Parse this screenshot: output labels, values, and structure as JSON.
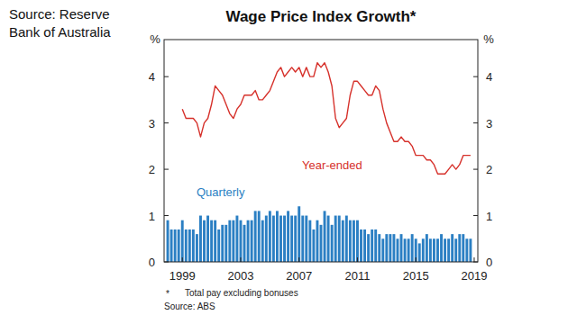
{
  "chart_data": {
    "type": "bar",
    "title": "Wage Price Index Growth*",
    "source_note": "Source: Reserve Bank of Australia",
    "footnote": {
      "marker": "*",
      "text": "Total pay excluding bonuses"
    },
    "source": "Source: ABS",
    "y_label": "%",
    "y2_label": "%",
    "x": [
      1998,
      1998.25,
      1998.5,
      1998.75,
      1999,
      1999.25,
      1999.5,
      1999.75,
      2000,
      2000.25,
      2000.5,
      2000.75,
      2001,
      2001.25,
      2001.5,
      2001.75,
      2002,
      2002.25,
      2002.5,
      2002.75,
      2003,
      2003.25,
      2003.5,
      2003.75,
      2004,
      2004.25,
      2004.5,
      2004.75,
      2005,
      2005.25,
      2005.5,
      2005.75,
      2006,
      2006.25,
      2006.5,
      2006.75,
      2007,
      2007.25,
      2007.5,
      2007.75,
      2008,
      2008.25,
      2008.5,
      2008.75,
      2009,
      2009.25,
      2009.5,
      2009.75,
      2010,
      2010.25,
      2010.5,
      2010.75,
      2011,
      2011.25,
      2011.5,
      2011.75,
      2012,
      2012.25,
      2012.5,
      2012.75,
      2013,
      2013.25,
      2013.5,
      2013.75,
      2014,
      2014.25,
      2014.5,
      2014.75,
      2015,
      2015.25,
      2015.5,
      2015.75,
      2016,
      2016.25,
      2016.5,
      2016.75,
      2017,
      2017.25,
      2017.5,
      2017.75,
      2018,
      2018.25,
      2018.5,
      2018.75
    ],
    "series": [
      {
        "name": "Year-ended",
        "type": "line",
        "color": "#d6312b",
        "values": [
          null,
          null,
          null,
          null,
          3.3,
          3.1,
          3.1,
          3.1,
          3.0,
          2.7,
          3.0,
          3.1,
          3.4,
          3.8,
          3.7,
          3.6,
          3.4,
          3.2,
          3.1,
          3.3,
          3.4,
          3.6,
          3.6,
          3.6,
          3.7,
          3.5,
          3.5,
          3.6,
          3.7,
          3.9,
          4.1,
          4.2,
          4.0,
          4.1,
          4.2,
          4.1,
          4.2,
          4.0,
          4.2,
          4.0,
          4.0,
          4.3,
          4.2,
          4.3,
          4.1,
          3.8,
          3.1,
          2.9,
          3.0,
          3.1,
          3.6,
          3.9,
          3.9,
          3.8,
          3.7,
          3.6,
          3.6,
          3.8,
          3.7,
          3.3,
          3.0,
          2.8,
          2.6,
          2.6,
          2.7,
          2.6,
          2.6,
          2.5,
          2.3,
          2.3,
          2.3,
          2.2,
          2.2,
          2.1,
          1.9,
          1.9,
          1.9,
          2.0,
          2.1,
          2.0,
          2.1,
          2.3,
          2.3,
          2.3
        ]
      },
      {
        "name": "Quarterly",
        "type": "bar",
        "color": "#2b7fc3",
        "values": [
          0.9,
          0.7,
          0.7,
          0.7,
          0.9,
          0.7,
          0.7,
          0.7,
          0.6,
          1.0,
          0.9,
          1.0,
          0.9,
          0.9,
          0.7,
          0.8,
          0.8,
          0.9,
          0.9,
          1.0,
          0.9,
          0.8,
          0.9,
          0.9,
          1.1,
          1.1,
          0.9,
          1.0,
          1.1,
          1.0,
          1.1,
          1.0,
          1.0,
          1.1,
          1.0,
          1.0,
          1.2,
          1.0,
          1.0,
          0.9,
          0.7,
          0.9,
          0.8,
          1.1,
          1.0,
          0.8,
          1.0,
          1.0,
          0.9,
          1.0,
          0.9,
          0.9,
          0.9,
          0.7,
          0.7,
          0.6,
          0.7,
          0.7,
          0.6,
          0.5,
          0.6,
          0.6,
          0.6,
          0.5,
          0.6,
          0.5,
          0.5,
          0.6,
          0.5,
          0.4,
          0.5,
          0.6,
          0.5,
          0.5,
          0.5,
          0.6,
          0.5,
          0.5,
          0.6,
          0.5,
          0.6,
          0.6,
          0.5,
          0.5
        ]
      }
    ],
    "xlim": [
      1997.75,
      2019.25
    ],
    "xticks": [
      1999,
      2003,
      2007,
      2011,
      2015,
      2019
    ],
    "ylim": [
      0,
      4.8
    ],
    "yticks": [
      0,
      1,
      2,
      3,
      4
    ],
    "y2lim": [
      0,
      4.8
    ],
    "y2ticks": [
      0,
      1,
      2,
      3,
      4
    ],
    "grid": false
  }
}
